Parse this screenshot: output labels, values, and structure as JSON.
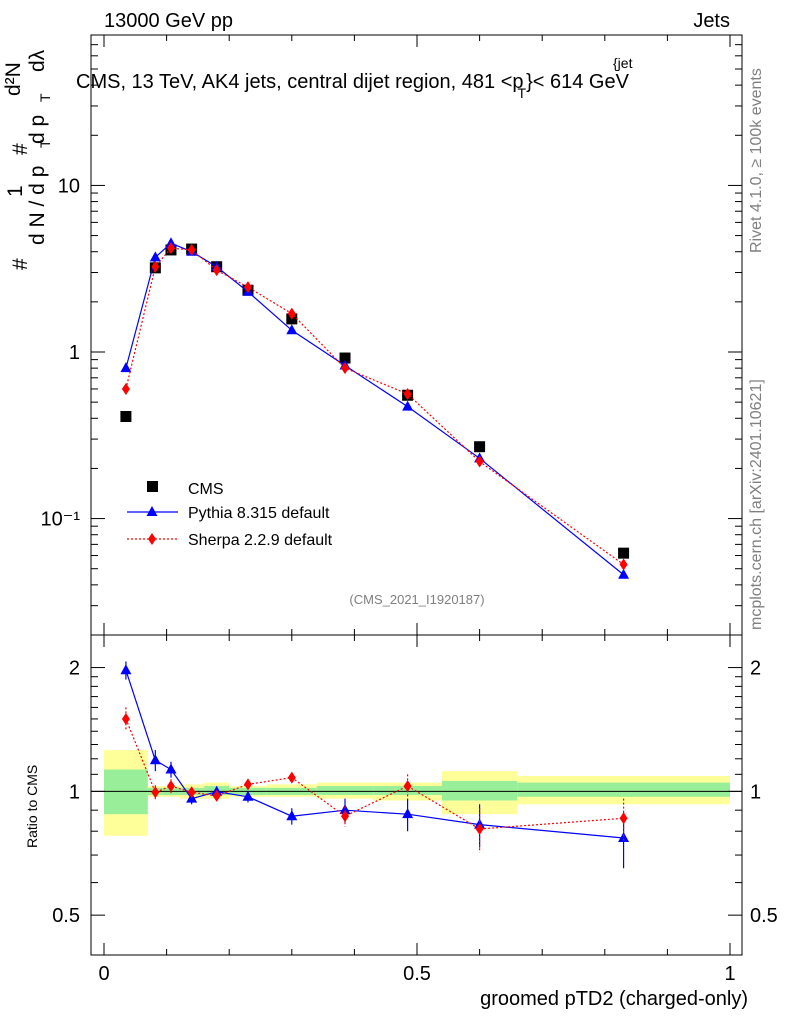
{
  "header": {
    "left": "13000 GeV pp",
    "right": "Jets"
  },
  "plot_title": "CMS, 13 TeV, AK4 jets, central dijet region, 481 <p",
  "plot_title_sup": "{jet",
  "plot_title_sub": "T",
  "plot_title_tail": "}< 614 GeV",
  "y_label_main": {
    "hash1": "#",
    "dN": "d N / d p",
    "T1": "T",
    "one": "1",
    "hash2": "#",
    "dpT": "d p",
    "T2": "T",
    "d2N": "d²N",
    "dlambda": "dλ"
  },
  "side_text_top": "Rivet 4.1.0, ≥ 100k events",
  "side_text_bottom": "mcplots.cern.ch [arXiv:2401.10621]",
  "watermark": "(CMS_2021_I1920187)",
  "legend": [
    {
      "label": "CMS",
      "color": "#000000"
    },
    {
      "label": "Pythia 8.315 default",
      "color": "#0000ff"
    },
    {
      "label": "Sherpa 2.2.9 default",
      "color": "#ff0000"
    }
  ],
  "ratio_ylabel": "Ratio to CMS",
  "xlabel": "groomed pTD2 (charged-only)",
  "chart_data": {
    "type": "scatter",
    "title": "CMS, 13 TeV, AK4 jets, central dijet region, 481 < pT(jet) < 614 GeV",
    "xlabel": "groomed pTD2 (charged-only)",
    "ylabel": "1/(dN/dpT) d2N/(dpT dlambda)",
    "xlim": [
      0,
      1
    ],
    "ylim_main": [
      0.02,
      80
    ],
    "yscale_main": "log",
    "ylim_ratio": [
      0.4,
      2.4
    ],
    "yscale_ratio": "log",
    "x_ticks": [
      0,
      0.5,
      1
    ],
    "x_tick_labels": [
      "0",
      "0.5",
      "1"
    ],
    "main_y_ticks": [
      0.1,
      1,
      10
    ],
    "main_y_tick_labels": [
      "10⁻¹",
      "1",
      "10"
    ],
    "ratio_y_ticks": [
      0.5,
      1,
      2
    ],
    "ratio_y_tick_labels": [
      "0.5",
      "1",
      "2"
    ],
    "bins": [
      {
        "lo": 0.0,
        "hi": 0.07
      },
      {
        "lo": 0.07,
        "hi": 0.094
      },
      {
        "lo": 0.094,
        "hi": 0.12
      },
      {
        "lo": 0.12,
        "hi": 0.16
      },
      {
        "lo": 0.16,
        "hi": 0.2
      },
      {
        "lo": 0.2,
        "hi": 0.26
      },
      {
        "lo": 0.26,
        "hi": 0.34
      },
      {
        "lo": 0.34,
        "hi": 0.43
      },
      {
        "lo": 0.43,
        "hi": 0.54
      },
      {
        "lo": 0.54,
        "hi": 0.66
      },
      {
        "lo": 0.66,
        "hi": 1.0
      }
    ],
    "ratio_bands": [
      {
        "lo": 0.0,
        "hi": 0.07,
        "inner": [
          0.88,
          1.13
        ],
        "outer": [
          0.78,
          1.26
        ]
      },
      {
        "lo": 0.07,
        "hi": 0.094,
        "inner": [
          0.98,
          1.02
        ],
        "outer": [
          0.97,
          1.03
        ]
      },
      {
        "lo": 0.094,
        "hi": 0.12,
        "inner": [
          0.98,
          1.02
        ],
        "outer": [
          0.97,
          1.03
        ]
      },
      {
        "lo": 0.12,
        "hi": 0.16,
        "inner": [
          0.98,
          1.02
        ],
        "outer": [
          0.96,
          1.04
        ]
      },
      {
        "lo": 0.16,
        "hi": 0.2,
        "inner": [
          0.98,
          1.03
        ],
        "outer": [
          0.96,
          1.05
        ]
      },
      {
        "lo": 0.2,
        "hi": 0.26,
        "inner": [
          0.98,
          1.02
        ],
        "outer": [
          0.97,
          1.03
        ]
      },
      {
        "lo": 0.26,
        "hi": 0.34,
        "inner": [
          0.98,
          1.02
        ],
        "outer": [
          0.97,
          1.04
        ]
      },
      {
        "lo": 0.34,
        "hi": 0.43,
        "inner": [
          0.98,
          1.03
        ],
        "outer": [
          0.96,
          1.05
        ]
      },
      {
        "lo": 0.43,
        "hi": 0.54,
        "inner": [
          0.98,
          1.03
        ],
        "outer": [
          0.95,
          1.05
        ]
      },
      {
        "lo": 0.54,
        "hi": 0.66,
        "inner": [
          0.95,
          1.06
        ],
        "outer": [
          0.88,
          1.12
        ]
      },
      {
        "lo": 0.66,
        "hi": 1.0,
        "inner": [
          0.97,
          1.05
        ],
        "outer": [
          0.93,
          1.09
        ]
      }
    ],
    "series": [
      {
        "name": "CMS",
        "style": "markers",
        "color": "#000000",
        "x": [
          0.035,
          0.082,
          0.107,
          0.14,
          0.18,
          0.23,
          0.3,
          0.385,
          0.485,
          0.6,
          0.83
        ],
        "y": [
          0.41,
          3.2,
          4.1,
          4.15,
          3.25,
          2.35,
          1.58,
          0.92,
          0.55,
          0.27,
          0.062
        ]
      },
      {
        "name": "Pythia 8.315 default",
        "style": "solid",
        "color": "#0000ff",
        "x": [
          0.035,
          0.082,
          0.107,
          0.14,
          0.18,
          0.23,
          0.3,
          0.385,
          0.485,
          0.6,
          0.83
        ],
        "y": [
          0.8,
          3.7,
          4.5,
          4.0,
          3.25,
          2.3,
          1.35,
          0.83,
          0.47,
          0.23,
          0.046
        ],
        "ratio": [
          1.97,
          1.19,
          1.13,
          0.96,
          0.998,
          0.97,
          0.87,
          0.9,
          0.88,
          0.83,
          0.77
        ],
        "ratio_err": [
          0.1,
          0.07,
          0.05,
          0.03,
          0.03,
          0.03,
          0.04,
          0.06,
          0.08,
          0.1,
          0.12
        ]
      },
      {
        "name": "Sherpa 2.2.9 default",
        "style": "dotted",
        "color": "#ff0000",
        "x": [
          0.035,
          0.082,
          0.107,
          0.14,
          0.18,
          0.23,
          0.3,
          0.385,
          0.485,
          0.6,
          0.83
        ],
        "y": [
          0.6,
          3.25,
          4.2,
          4.1,
          3.1,
          2.45,
          1.7,
          0.8,
          0.56,
          0.22,
          0.053
        ],
        "ratio": [
          1.5,
          0.995,
          1.03,
          0.995,
          0.975,
          1.04,
          1.08,
          0.87,
          1.03,
          0.81,
          0.86
        ],
        "ratio_err": [
          0.1,
          0.04,
          0.04,
          0.03,
          0.03,
          0.03,
          0.03,
          0.05,
          0.07,
          0.1,
          0.1
        ]
      }
    ]
  }
}
